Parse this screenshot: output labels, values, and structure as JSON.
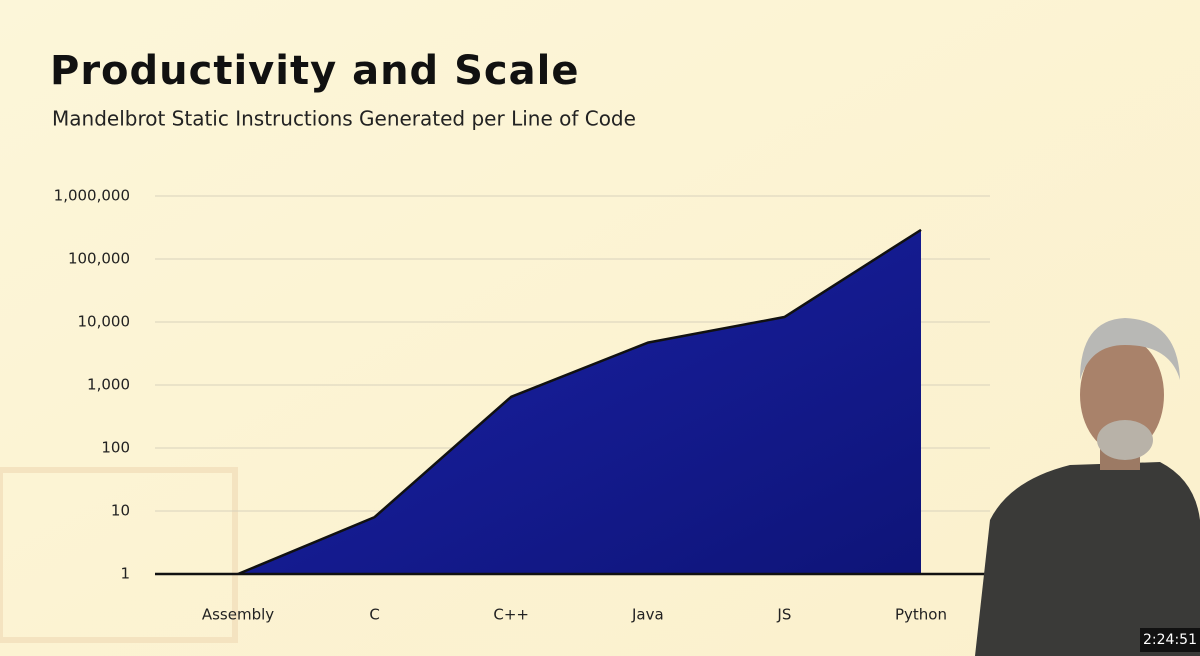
{
  "chart_data": {
    "type": "area",
    "title": "Productivity and Scale",
    "subtitle": "Mandelbrot Static Instructions Generated per Line of Code",
    "categories": [
      "Assembly",
      "C",
      "C++",
      "Java",
      "JS",
      "Python"
    ],
    "values": [
      1,
      8,
      650,
      4700,
      12000,
      290000
    ],
    "color": "#1a1fa0",
    "log": true,
    "grid": true,
    "ylim": [
      1,
      1000000
    ],
    "yticks": [
      1,
      10,
      100,
      {
        "value": 1000,
        "label": "1,000"
      },
      {
        "value": 10000,
        "label": "10,000"
      },
      {
        "value": 100000,
        "label": "100,000"
      },
      {
        "value": 1000000,
        "label": "1,000,000"
      }
    ]
  },
  "overlay": {
    "timestamp": "2:24:51"
  }
}
